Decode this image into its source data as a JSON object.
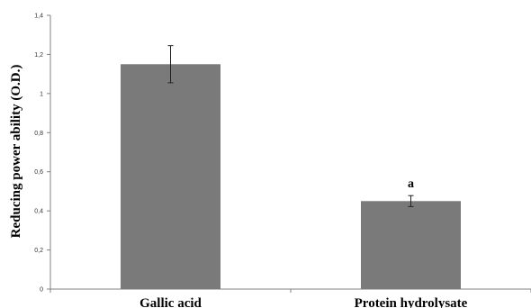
{
  "chart_data": {
    "type": "bar",
    "categories": [
      "Gallic acid",
      "Protein hydrolysate"
    ],
    "values": [
      1.15,
      0.45
    ],
    "error": [
      0.095,
      0.028
    ],
    "annotations": [
      "",
      "a"
    ],
    "ytick_labels": [
      "0",
      "0,2",
      "0,4",
      "0,6",
      "0,8",
      "1",
      "1,2",
      "1,4"
    ],
    "ytick_values": [
      0,
      0.2,
      0.4,
      0.6,
      0.8,
      1.0,
      1.2,
      1.4
    ],
    "ylim": [
      0,
      1.4
    ],
    "ylabel": "Reducing power ability (O.D.)",
    "xlabel": "",
    "grid": false,
    "colors": {
      "bar": "#7a7a7a",
      "axis": "#808080",
      "error": "#222222"
    }
  }
}
